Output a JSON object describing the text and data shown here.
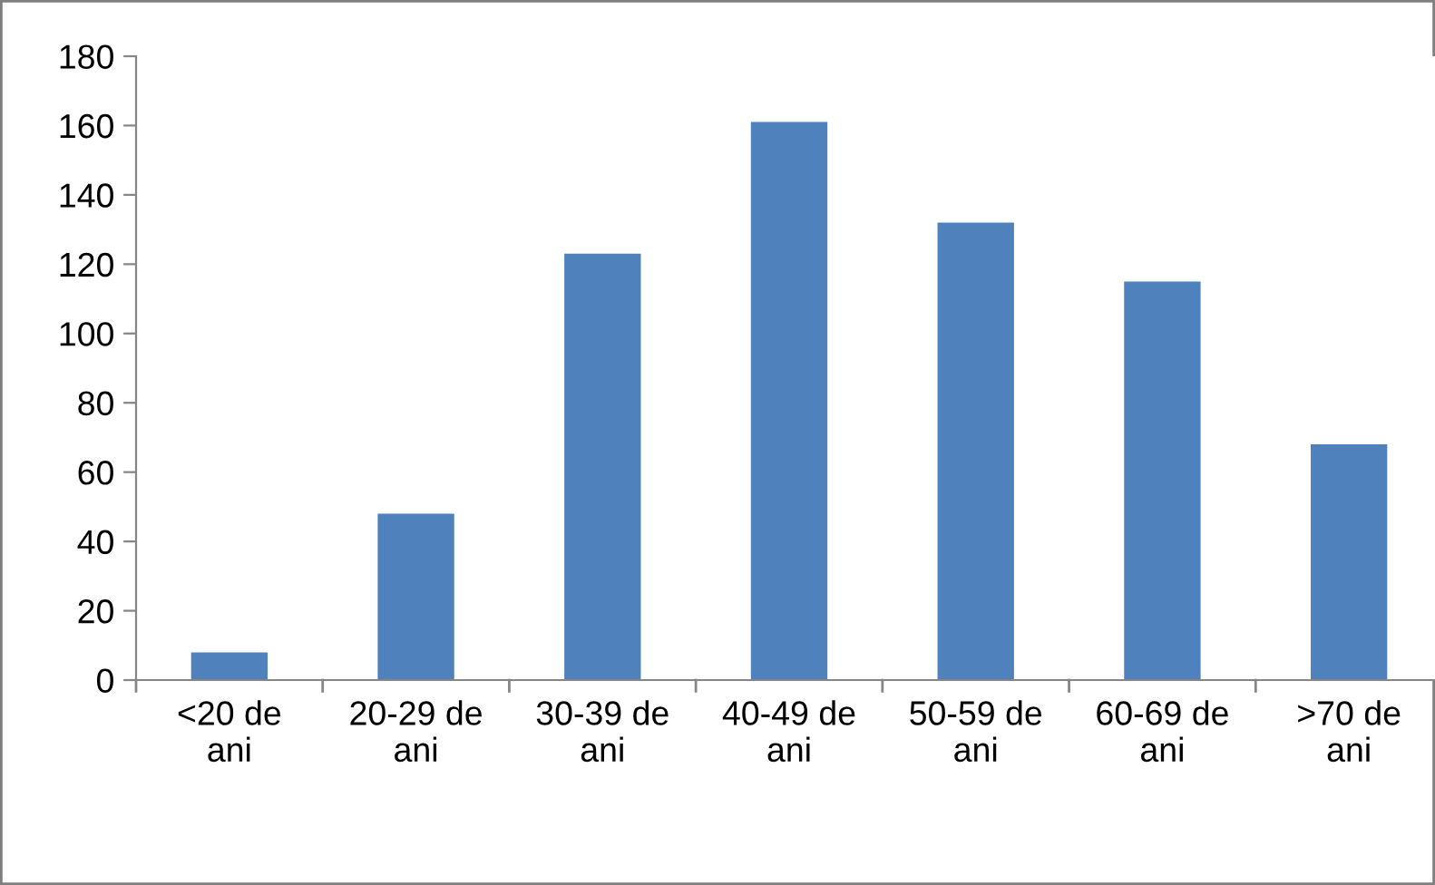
{
  "chart_data": {
    "type": "bar",
    "categories": [
      "<20 de ani",
      "20-29 de ani",
      "30-39 de ani",
      "40-49 de ani",
      "50-59 de ani",
      "60-69 de ani",
      ">70 de ani"
    ],
    "values": [
      8,
      48,
      123,
      161,
      132,
      115,
      68
    ],
    "color": "#4f81bd",
    "ylim": [
      0,
      180
    ],
    "yticks": [
      0,
      20,
      40,
      60,
      80,
      100,
      120,
      140,
      160,
      180
    ],
    "grid": false,
    "legend": false
  }
}
